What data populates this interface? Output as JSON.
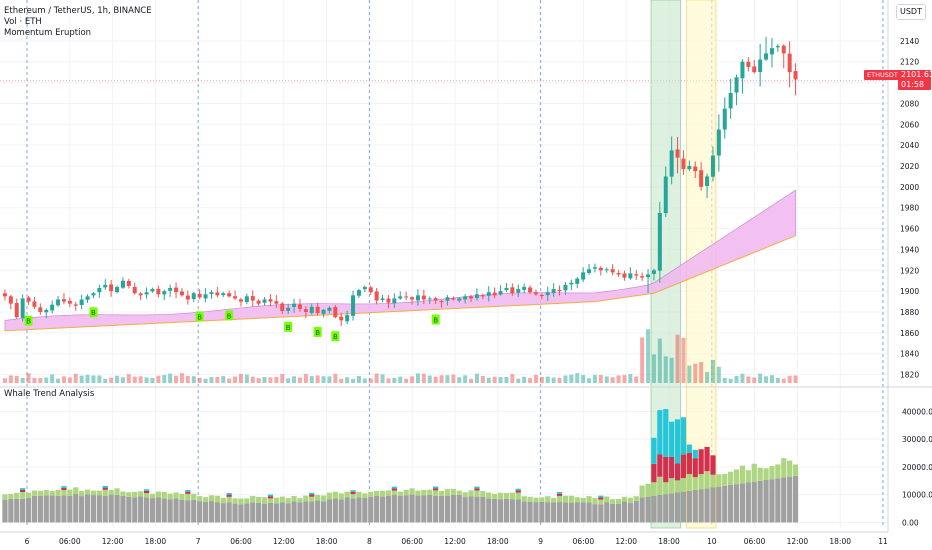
{
  "header": {
    "title": "Ethereum / TetherUS, 1h, BINANCE",
    "indicator_vol": "Vol · ETH",
    "indicator_momentum": "Momentum Eruption",
    "lower_pane_title": "Whale Trend Analysis",
    "currency_unit": "USDT"
  },
  "last_price": {
    "symbol": "ETHUSDT",
    "value": "2101.63",
    "countdown": "01:58"
  },
  "colors": {
    "up": "#26a69a",
    "down": "#ef5350",
    "ribbon_fill": "#f0b6f0",
    "ribbon_line": "#f5b041",
    "highlight_green": "#c8e6c9",
    "highlight_yellow": "#fff9c4",
    "whale_gray": "#a0a0a0",
    "whale_green": "#aed581",
    "whale_red": "#d32f4f",
    "whale_cyan": "#26c6da",
    "buy_label_bg": "#76ff03"
  },
  "chart_data": [
    {
      "type": "candlestick",
      "name": "price",
      "ylim": [
        1810,
        2160
      ],
      "y_ticks": [
        2140,
        2120,
        2100,
        2080,
        2060,
        2040,
        2020,
        2000,
        1980,
        1960,
        1940,
        1920,
        1900,
        1880,
        1860,
        1840,
        1820
      ],
      "x_tick_labels": [
        "6",
        "06:00",
        "12:00",
        "18:00",
        "7",
        "06:00",
        "12:00",
        "18:00",
        "8",
        "06:00",
        "12:00",
        "18:00",
        "9",
        "06:00",
        "12:00",
        "18:00",
        "10",
        "06:00",
        "12:00",
        "18:00",
        "11"
      ],
      "buy_signal_label": "B",
      "closes": [
        1895,
        1888,
        1875,
        1893,
        1890,
        1885,
        1880,
        1882,
        1887,
        1892,
        1890,
        1888,
        1886,
        1892,
        1895,
        1898,
        1903,
        1906,
        1900,
        1904,
        1910,
        1905,
        1898,
        1896,
        1899,
        1902,
        1897,
        1900,
        1903,
        1899,
        1896,
        1892,
        1898,
        1894,
        1897,
        1899,
        1896,
        1898,
        1895,
        1893,
        1890,
        1895,
        1891,
        1888,
        1892,
        1890,
        1888,
        1881,
        1884,
        1888,
        1883,
        1880,
        1885,
        1879,
        1882,
        1884,
        1875,
        1872,
        1877,
        1896,
        1901,
        1904,
        1899,
        1891,
        1893,
        1889,
        1893,
        1895,
        1894,
        1892,
        1896,
        1892,
        1893,
        1891,
        1890,
        1894,
        1892,
        1893,
        1895,
        1893,
        1897,
        1895,
        1899,
        1896,
        1900,
        1903,
        1898,
        1902,
        1904,
        1899,
        1897,
        1896,
        1899,
        1902,
        1900,
        1906,
        1908,
        1912,
        1918,
        1921,
        1923,
        1920,
        1921,
        1918,
        1916,
        1913,
        1917,
        1915,
        1913,
        1916,
        1920,
        1975,
        2010,
        2035,
        2028,
        2017,
        2020,
        2015,
        2000,
        2010,
        2030,
        2055,
        2075,
        2090,
        2105,
        2120,
        2115,
        2110,
        2122,
        2128,
        2133,
        2135,
        2128,
        2110,
        2103
      ],
      "volume_ylim": [
        0,
        60
      ],
      "highlight_zones": [
        {
          "color": "green",
          "start_index": 110,
          "end_index": 114
        },
        {
          "color": "yellow",
          "start_index": 116,
          "end_index": 120
        }
      ]
    },
    {
      "type": "stacked_bar",
      "name": "Whale Trend Analysis",
      "ylim": [
        -2000,
        47000
      ],
      "y_ticks": [
        40000,
        30000,
        20000,
        10000,
        0
      ],
      "y_tick_labels": [
        "40000.00",
        "30000.00",
        "20000.00",
        "10000.00",
        "0.00"
      ]
    }
  ]
}
